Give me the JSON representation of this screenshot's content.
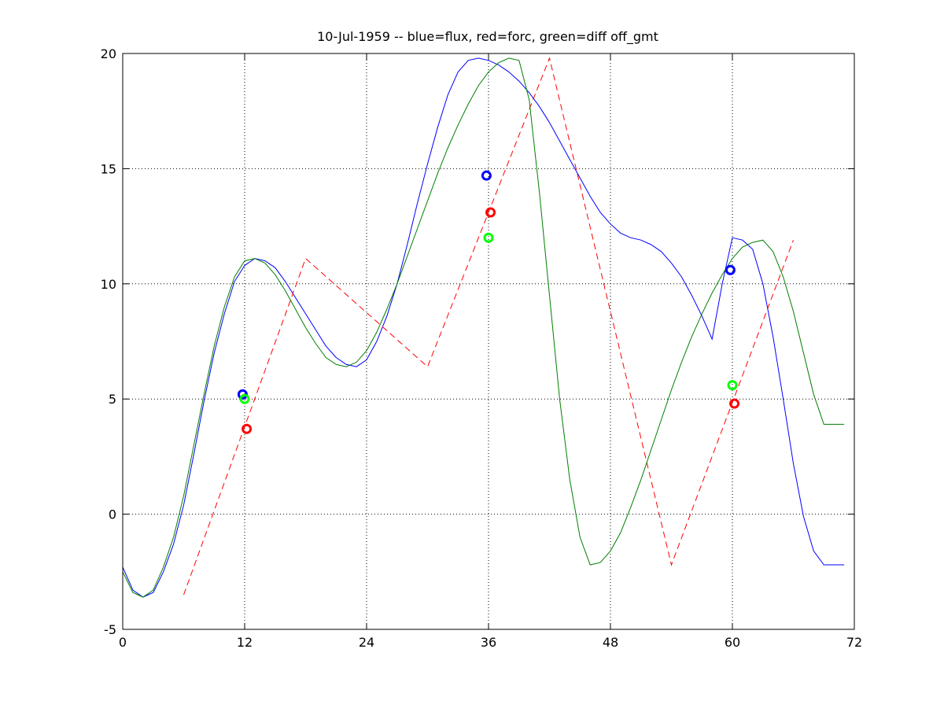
{
  "chart_data": {
    "type": "line",
    "title": "10-Jul-1959 -- blue=flux, red=forc, green=diff off_gmt",
    "xlabel": "",
    "ylabel": "",
    "xlim": [
      0,
      72
    ],
    "ylim": [
      -5,
      20
    ],
    "xticks": [
      0,
      12,
      24,
      36,
      48,
      60,
      72
    ],
    "xtick_labels": [
      "0",
      "12",
      "24",
      "36",
      "48",
      "60",
      "72"
    ],
    "yticks": [
      -5,
      0,
      5,
      10,
      15,
      20
    ],
    "ytick_labels": [
      "-5",
      "0",
      "5",
      "10",
      "15",
      "20"
    ],
    "grid": true,
    "series": [
      {
        "color": "#0000ff",
        "style": "solid",
        "x": [
          0,
          1,
          2,
          3,
          4,
          5,
          6,
          7,
          8,
          9,
          10,
          11,
          12,
          13,
          14,
          15,
          16,
          17,
          18,
          19,
          20,
          21,
          22,
          23,
          24,
          25,
          26,
          27,
          28,
          29,
          30,
          31,
          32,
          33,
          34,
          35,
          36,
          37,
          38,
          39,
          40,
          41,
          42,
          43,
          44,
          45,
          46,
          47,
          48,
          49,
          50,
          51,
          52,
          53,
          54,
          55,
          56,
          57,
          58,
          59,
          60,
          61,
          62,
          63,
          64,
          65,
          66,
          67,
          68,
          69,
          70,
          71
        ],
        "y": [
          -2.3,
          -3.3,
          -3.6,
          -3.4,
          -2.5,
          -1.3,
          0.4,
          2.6,
          4.9,
          7.0,
          8.7,
          10.1,
          10.8,
          11.1,
          11.0,
          10.7,
          10.1,
          9.4,
          8.7,
          8.0,
          7.3,
          6.8,
          6.5,
          6.4,
          6.7,
          7.5,
          8.6,
          10.0,
          11.7,
          13.5,
          15.2,
          16.8,
          18.2,
          19.2,
          19.7,
          19.8,
          19.7,
          19.5,
          19.2,
          18.8,
          18.3,
          17.7,
          17.0,
          16.2,
          15.4,
          14.6,
          13.8,
          13.1,
          12.6,
          12.2,
          12.0,
          11.9,
          11.7,
          11.4,
          10.9,
          10.3,
          9.5,
          8.6,
          7.6,
          10.0,
          12.0,
          11.9,
          11.5,
          10.0,
          7.7,
          5.0,
          2.2,
          -0.1,
          -1.6,
          -2.2,
          -2.2,
          -2.2
        ],
        "markers": [
          {
            "x": 11.8,
            "y": 5.2
          },
          {
            "x": 35.8,
            "y": 14.7
          },
          {
            "x": 59.8,
            "y": 10.6
          }
        ]
      },
      {
        "color": "#ff0000",
        "style": "dashed",
        "x": [
          6,
          18,
          30,
          42,
          54,
          66
        ],
        "y": [
          -3.5,
          11.1,
          6.4,
          19.8,
          -2.2,
          11.9
        ],
        "markers": [
          {
            "x": 12.2,
            "y": 3.7
          },
          {
            "x": 36.2,
            "y": 13.1
          },
          {
            "x": 60.2,
            "y": 4.8
          }
        ]
      },
      {
        "color": "#007f00",
        "style": "solid",
        "x": [
          0,
          1,
          2,
          3,
          4,
          5,
          6,
          7,
          8,
          9,
          10,
          11,
          12,
          13,
          14,
          15,
          16,
          17,
          18,
          19,
          20,
          21,
          22,
          23,
          24,
          25,
          26,
          27,
          28,
          29,
          30,
          31,
          32,
          33,
          34,
          35,
          36,
          37,
          38,
          39,
          40,
          41,
          42,
          43,
          44,
          45,
          46,
          47,
          48,
          49,
          50,
          51,
          52,
          53,
          54,
          55,
          56,
          57,
          58,
          59,
          60,
          61,
          62,
          63,
          64,
          65,
          66,
          67,
          68,
          69,
          70,
          71
        ],
        "y": [
          -2.5,
          -3.4,
          -3.6,
          -3.3,
          -2.3,
          -1.0,
          0.8,
          3.0,
          5.2,
          7.3,
          9.0,
          10.3,
          11.0,
          11.1,
          10.9,
          10.4,
          9.7,
          8.9,
          8.1,
          7.4,
          6.8,
          6.5,
          6.4,
          6.6,
          7.1,
          7.9,
          8.9,
          10.0,
          11.2,
          12.4,
          13.6,
          14.8,
          15.9,
          16.9,
          17.8,
          18.6,
          19.2,
          19.6,
          19.8,
          19.7,
          18.0,
          14.0,
          9.5,
          5.0,
          1.5,
          -1.0,
          -2.2,
          -2.1,
          -1.6,
          -0.8,
          0.3,
          1.5,
          2.8,
          4.1,
          5.4,
          6.6,
          7.7,
          8.7,
          9.6,
          10.4,
          11.1,
          11.6,
          11.8,
          11.9,
          11.4,
          10.3,
          8.8,
          7.0,
          5.2,
          3.9,
          3.9,
          3.9
        ],
        "markers": [
          {
            "x": 12.0,
            "y": 5.0
          },
          {
            "x": 36.0,
            "y": 12.0
          },
          {
            "x": 60.0,
            "y": 5.6
          }
        ]
      }
    ],
    "marker_colors": [
      "#0000ff",
      "#ff0000",
      "#00ff00"
    ]
  }
}
